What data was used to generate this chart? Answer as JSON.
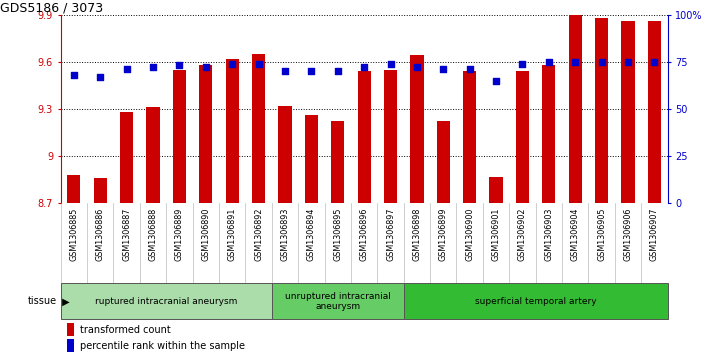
{
  "title": "GDS5186 / 3073",
  "samples": [
    "GSM1306885",
    "GSM1306886",
    "GSM1306887",
    "GSM1306888",
    "GSM1306889",
    "GSM1306890",
    "GSM1306891",
    "GSM1306892",
    "GSM1306893",
    "GSM1306894",
    "GSM1306895",
    "GSM1306896",
    "GSM1306897",
    "GSM1306898",
    "GSM1306899",
    "GSM1306900",
    "GSM1306901",
    "GSM1306902",
    "GSM1306903",
    "GSM1306904",
    "GSM1306905",
    "GSM1306906",
    "GSM1306907"
  ],
  "transformed_count": [
    8.88,
    8.86,
    9.28,
    9.31,
    9.55,
    9.58,
    9.62,
    9.65,
    9.32,
    9.26,
    9.22,
    9.54,
    9.55,
    9.64,
    9.22,
    9.54,
    8.87,
    9.54,
    9.58,
    9.96,
    9.88,
    9.86,
    9.86
  ],
  "percentile_rank": [
    68,
    67,
    71,
    72,
    73,
    72,
    74,
    74,
    70,
    70,
    70,
    72,
    74,
    72,
    71,
    71,
    65,
    74,
    75,
    75,
    75,
    75,
    75
  ],
  "ylim_left": [
    8.7,
    9.9
  ],
  "ylim_right": [
    0,
    100
  ],
  "yticks_left": [
    8.7,
    9.0,
    9.3,
    9.6,
    9.9
  ],
  "ytick_labels_left": [
    "8.7",
    "9",
    "9.3",
    "9.6",
    "9.9"
  ],
  "yticks_right": [
    0,
    25,
    50,
    75,
    100
  ],
  "ytick_labels_right": [
    "0",
    "25",
    "50",
    "75",
    "100%"
  ],
  "bar_color": "#cc0000",
  "dot_color": "#0000cc",
  "plot_bg_color": "#ffffff",
  "tick_area_bg": "#d4d4d4",
  "groups": [
    {
      "label": "ruptured intracranial aneurysm",
      "start": 0,
      "end": 8,
      "color": "#aaddaa"
    },
    {
      "label": "unruptured intracranial\naneurysm",
      "start": 8,
      "end": 13,
      "color": "#66cc66"
    },
    {
      "label": "superficial temporal artery",
      "start": 13,
      "end": 23,
      "color": "#33bb33"
    }
  ],
  "tissue_label": "tissue",
  "legend_bar_label": "transformed count",
  "legend_dot_label": "percentile rank within the sample",
  "bar_width": 0.5
}
